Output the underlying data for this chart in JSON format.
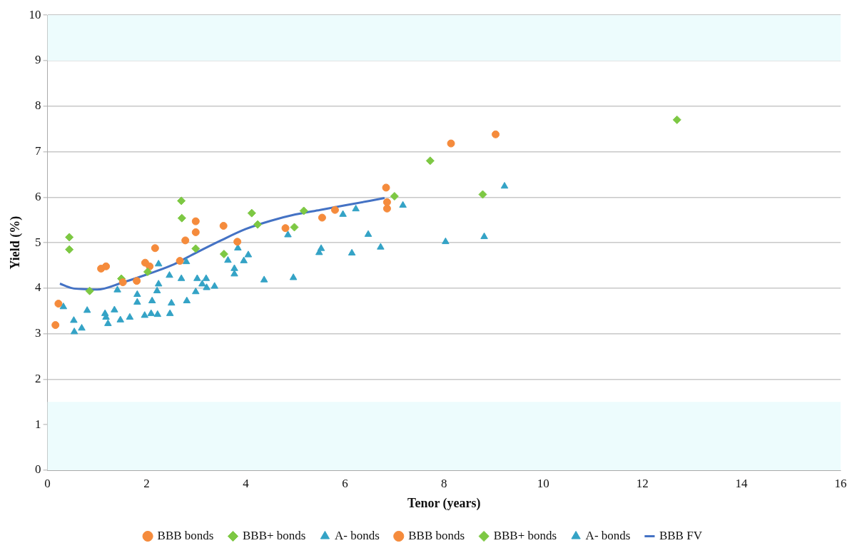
{
  "chart_data": {
    "type": "scatter",
    "xlabel": "Tenor (years)",
    "ylabel": "Yield (%)",
    "xlim": [
      0,
      16
    ],
    "xticks": [
      0,
      2,
      4,
      6,
      8,
      10,
      12,
      14,
      16
    ],
    "ylim": [
      0,
      10
    ],
    "yticks": [
      0,
      1,
      2,
      3,
      4,
      5,
      6,
      7,
      8,
      9,
      10
    ],
    "grid": "y",
    "legend": "bottom",
    "bands": [
      {
        "axis": "y",
        "from": 0,
        "to": 1.5,
        "color": "#edfcfd"
      },
      {
        "axis": "y",
        "from": 9,
        "to": 10,
        "color": "#edfcfd"
      }
    ],
    "series": [
      {
        "name": "BBB bonds",
        "color": "#f58b3c",
        "marker": "circle",
        "x": [
          0.16,
          0.22,
          1.08,
          1.18,
          1.52,
          1.8,
          1.97,
          2.17,
          2.67,
          2.78,
          2.99,
          2.99,
          3.55,
          3.83,
          4.8,
          5.54,
          5.8,
          6.83,
          6.85,
          6.85,
          8.14,
          9.04
        ],
        "values": [
          3.19,
          3.66,
          4.43,
          4.48,
          4.13,
          4.16,
          4.56,
          4.88,
          4.6,
          5.05,
          5.47,
          5.23,
          5.37,
          5.02,
          5.32,
          5.55,
          5.72,
          6.21,
          5.89,
          5.75,
          7.18,
          7.38
        ]
      },
      {
        "name": "BBB+ bonds",
        "color": "#7dc843",
        "marker": "diamond",
        "x": [
          0.44,
          0.85,
          1.49,
          2.02,
          2.71,
          2.7,
          2.99,
          3.56,
          4.12,
          4.24,
          4.98,
          5.17,
          7.0,
          7.72,
          12.7
        ],
        "values": [
          4.85,
          3.94,
          4.21,
          4.36,
          5.54,
          5.92,
          4.87,
          4.75,
          5.65,
          5.4,
          5.34,
          5.7,
          6.02,
          6.8,
          7.7
        ]
      },
      {
        "name": "A- bonds",
        "color": "#34a3c6",
        "marker": "triangle",
        "x": [
          0.53,
          0.8,
          1.16,
          1.35,
          1.41,
          1.81,
          2.11,
          2.24,
          2.21,
          2.24,
          2.46,
          2.5,
          2.7,
          2.8,
          3.02,
          3.12,
          3.2,
          3.64,
          3.84,
          4.05,
          3.96,
          3.77,
          4.85,
          5.52,
          5.48,
          5.96,
          6.22,
          6.47,
          6.14,
          7.17
        ],
        "values": [
          3.29,
          3.51,
          3.44,
          3.52,
          3.96,
          3.69,
          3.72,
          4.09,
          3.94,
          4.53,
          4.28,
          3.67,
          4.21,
          4.58,
          4.21,
          4.09,
          4.21,
          4.61,
          4.88,
          4.73,
          4.6,
          4.43,
          5.17,
          4.87,
          4.78,
          5.62,
          5.74,
          5.18,
          4.77,
          5.82
        ]
      },
      {
        "name": "BBB bonds",
        "color": "#f58b3c",
        "marker": "circle",
        "x": [
          2.06
        ],
        "values": [
          4.48
        ]
      },
      {
        "name": "BBB+ bonds",
        "color": "#7dc843",
        "marker": "diamond",
        "x": [
          0.44,
          8.78
        ],
        "values": [
          5.12,
          6.06
        ]
      },
      {
        "name": "A- bonds",
        "color": "#34a3c6",
        "marker": "triangle",
        "x": [
          0.32,
          0.54,
          0.69,
          1.18,
          1.22,
          1.47,
          1.66,
          1.81,
          1.96,
          2.09,
          2.22,
          2.47,
          2.81,
          2.99,
          3.21,
          3.37,
          3.77,
          4.37,
          4.96,
          6.72,
          8.03,
          8.81,
          9.22
        ],
        "values": [
          3.59,
          3.04,
          3.12,
          3.36,
          3.22,
          3.3,
          3.36,
          3.86,
          3.4,
          3.44,
          3.42,
          3.44,
          3.72,
          3.92,
          4.01,
          4.04,
          4.31,
          4.18,
          4.23,
          4.9,
          5.02,
          5.13,
          6.24
        ]
      },
      {
        "name": "BBB FV",
        "type": "line",
        "color": "#4472c4",
        "marker": "none",
        "line_style": "solid",
        "x": [
          0.25,
          0.5,
          0.75,
          1.0,
          1.5,
          2,
          2.5,
          3,
          3.5,
          4,
          4.5,
          5,
          5.5,
          6,
          6.5,
          6.8
        ],
        "values": [
          4.1,
          4.0,
          3.98,
          3.97,
          4.12,
          4.3,
          4.5,
          4.78,
          5.05,
          5.3,
          5.48,
          5.62,
          5.72,
          5.82,
          5.92,
          5.98
        ]
      }
    ]
  }
}
